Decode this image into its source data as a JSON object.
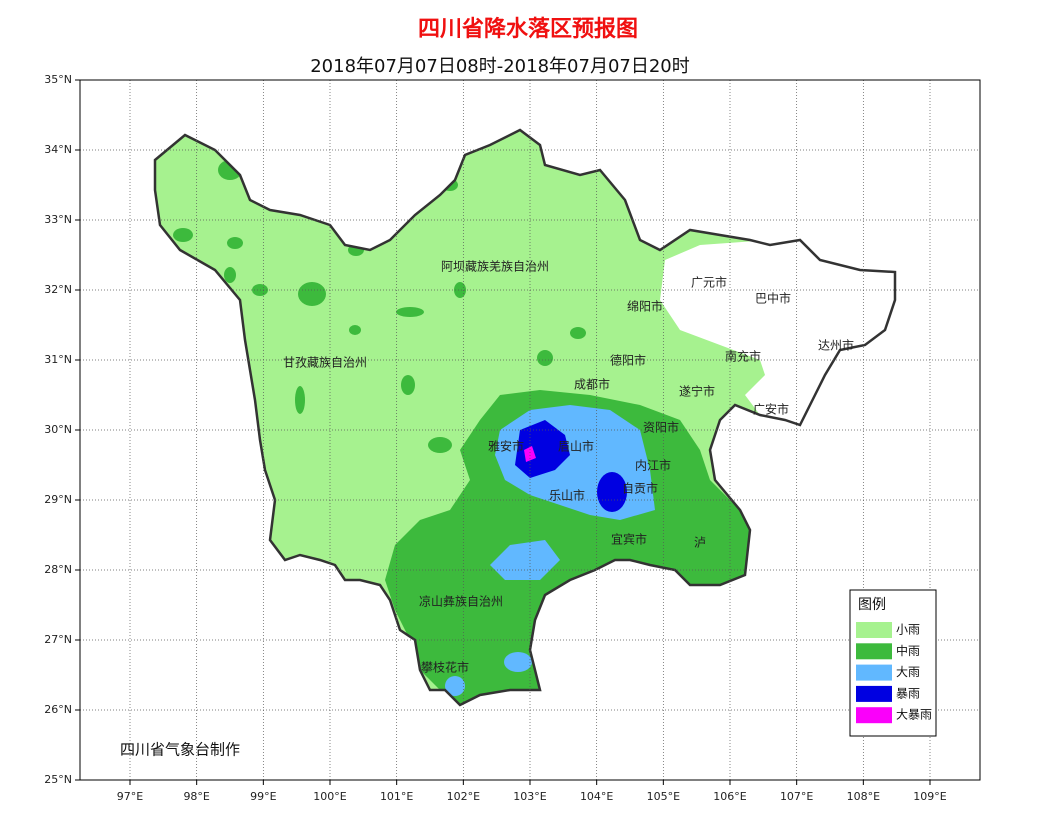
{
  "header": {
    "title": "四川省降水落区预报图",
    "subtitle": "2018年07月07日08时-2018年07月07日20时"
  },
  "axes": {
    "lat_labels": [
      "35°N",
      "34°N",
      "33°N",
      "32°N",
      "31°N",
      "30°N",
      "29°N",
      "28°N",
      "27°N",
      "26°N",
      "25°N"
    ],
    "lon_labels": [
      "97°E",
      "98°E",
      "99°E",
      "100°E",
      "101°E",
      "102°E",
      "103°E",
      "104°E",
      "105°E",
      "106°E",
      "107°E",
      "108°E",
      "109°E"
    ]
  },
  "places": [
    "阿坝藏族羌族自治州",
    "甘孜藏族自治州",
    "广元市",
    "巴中市",
    "绵阳市",
    "达州市",
    "德阳市",
    "南充市",
    "成都市",
    "遂宁市",
    "广安市",
    "资阳市",
    "雅安市",
    "眉山市",
    "内江市",
    "自贡市",
    "乐山市",
    "宜宾市",
    "泸",
    "凉山彝族自治州",
    "攀枝花市"
  ],
  "legend": {
    "title": "图例",
    "items": [
      {
        "label": "小雨",
        "color": "#a6f28f"
      },
      {
        "label": "中雨",
        "color": "#3dba3d"
      },
      {
        "label": "大雨",
        "color": "#61b8ff"
      },
      {
        "label": "暴雨",
        "color": "#0000e1"
      },
      {
        "label": "大暴雨",
        "color": "#fa00fa"
      }
    ]
  },
  "credit": "四川省气象台制作"
}
